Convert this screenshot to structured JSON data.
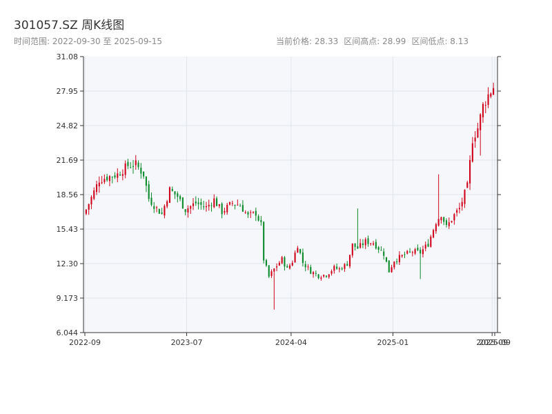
{
  "header": {
    "title": "301057.SZ 周K线图",
    "date_range_label": "时间范围: 2022-09-30 至 2025-09-15",
    "current_price_label": "当前价格: 28.33",
    "range_high_label": "区间高点: 28.99",
    "range_low_label": "区间低点: 8.13"
  },
  "colors": {
    "up": "#d0021b",
    "down": "#0a8a2a",
    "plot_bg": "#f5f7fa",
    "grid": "#e1e5ea",
    "axis": "#333333"
  },
  "chart_data": {
    "type": "candlestick",
    "title": "301057.SZ 周K线图",
    "xlabel": "",
    "ylabel": "",
    "y_ticks": [
      "6.044",
      "9.173",
      "12.30",
      "15.43",
      "18.56",
      "21.69",
      "24.82",
      "27.95",
      "31.08"
    ],
    "x_ticks": [
      {
        "label": "2022-09",
        "week": 0
      },
      {
        "label": "2023-07",
        "week": 39
      },
      {
        "label": "2024-04",
        "week": 79
      },
      {
        "label": "2025-01",
        "week": 118
      },
      {
        "label": "2025-09",
        "week": 156
      },
      {
        "label": "2025-09",
        "week": 157
      }
    ],
    "ylim": [
      6.044,
      31.08
    ],
    "grid": true,
    "start_date": "2022-09-30",
    "end_date": "2025-09-15",
    "current_price": 28.33,
    "range_high": 28.99,
    "range_low": 8.13,
    "anchors": [
      [
        0,
        17.2
      ],
      [
        5,
        19.9
      ],
      [
        9,
        20.2
      ],
      [
        12,
        20.4
      ],
      [
        16,
        21.2
      ],
      [
        19,
        21.3
      ],
      [
        22,
        20.4
      ],
      [
        24,
        18.2
      ],
      [
        27,
        17.3
      ],
      [
        29,
        16.8
      ],
      [
        32,
        19.0
      ],
      [
        35,
        18.4
      ],
      [
        38,
        17.2
      ],
      [
        42,
        17.8
      ],
      [
        46,
        17.4
      ],
      [
        49,
        18.1
      ],
      [
        52,
        17.0
      ],
      [
        56,
        17.8
      ],
      [
        59,
        17.6
      ],
      [
        62,
        16.6
      ],
      [
        65,
        16.9
      ],
      [
        67,
        15.8
      ],
      [
        68,
        12.7
      ],
      [
        70,
        11.1
      ],
      [
        72,
        11.8
      ],
      [
        75,
        12.7
      ],
      [
        77,
        11.8
      ],
      [
        79,
        12.5
      ],
      [
        81,
        14.0
      ],
      [
        83,
        12.4
      ],
      [
        86,
        11.6
      ],
      [
        89,
        11.2
      ],
      [
        92,
        11.3
      ],
      [
        95,
        11.9
      ],
      [
        97,
        11.8
      ],
      [
        100,
        12.3
      ],
      [
        102,
        14.0
      ],
      [
        104,
        13.7
      ],
      [
        107,
        14.3
      ],
      [
        110,
        14.2
      ],
      [
        114,
        13.2
      ],
      [
        116,
        11.6
      ],
      [
        118,
        12.6
      ],
      [
        122,
        13.1
      ],
      [
        125,
        13.4
      ],
      [
        128,
        13.3
      ],
      [
        131,
        14.1
      ],
      [
        134,
        16.1
      ],
      [
        136,
        16.8
      ],
      [
        138,
        15.6
      ],
      [
        141,
        16.7
      ],
      [
        143,
        17.3
      ],
      [
        146,
        19.3
      ],
      [
        148,
        23.6
      ],
      [
        150,
        24.6
      ],
      [
        152,
        26.6
      ],
      [
        154,
        27.6
      ],
      [
        156,
        28.33
      ]
    ],
    "spikes": [
      [
        72,
        8.13
      ],
      [
        104,
        17.3
      ],
      [
        128,
        10.9
      ],
      [
        135,
        20.4
      ],
      [
        151,
        22.1
      ],
      [
        157,
        28.99
      ]
    ]
  }
}
